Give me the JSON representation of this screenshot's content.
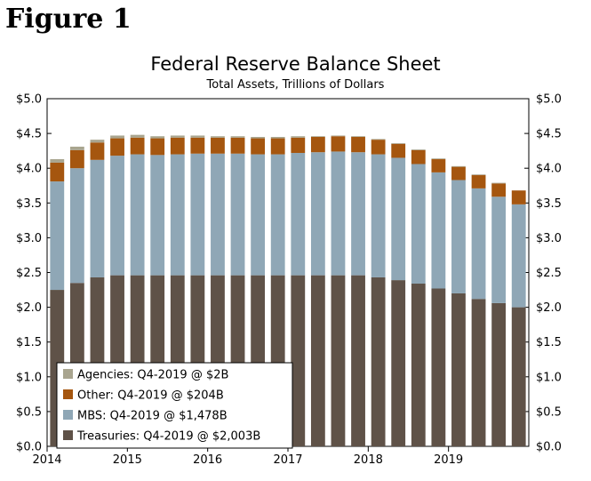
{
  "figure_label": "Figure 1",
  "colors": {
    "treasuries": "#5f5248",
    "mbs": "#8fa7b6",
    "other": "#a5560f",
    "agencies": "#a9a58f"
  },
  "chart_data": {
    "type": "bar",
    "stacked": true,
    "title": "Federal Reserve Balance Sheet",
    "subtitle": "Total Assets, Trillions of Dollars",
    "xlabel": "",
    "ylabel": "",
    "ylim": [
      0,
      5.0
    ],
    "y_ticks": [
      "$0.0",
      "$0.5",
      "$1.0",
      "$1.5",
      "$2.0",
      "$2.5",
      "$3.0",
      "$3.5",
      "$4.0",
      "$4.5",
      "$5.0"
    ],
    "x_ticks": [
      {
        "label": "2014",
        "index": -0.5
      },
      {
        "label": "2015",
        "index": 3.5
      },
      {
        "label": "2016",
        "index": 7.5
      },
      {
        "label": "2017",
        "index": 11.5
      },
      {
        "label": "2018",
        "index": 15.5
      },
      {
        "label": "2019",
        "index": 19.5
      }
    ],
    "categories": [
      "Q1-2014",
      "Q2-2014",
      "Q3-2014",
      "Q4-2014",
      "Q1-2015",
      "Q2-2015",
      "Q3-2015",
      "Q4-2015",
      "Q1-2016",
      "Q2-2016",
      "Q3-2016",
      "Q4-2016",
      "Q1-2017",
      "Q2-2017",
      "Q3-2017",
      "Q4-2017",
      "Q1-2018",
      "Q2-2018",
      "Q3-2018",
      "Q4-2018",
      "Q1-2019",
      "Q2-2019",
      "Q3-2019",
      "Q4-2019"
    ],
    "series": [
      {
        "name": "Treasuries",
        "key": "treasuries",
        "values": [
          2.25,
          2.35,
          2.43,
          2.46,
          2.46,
          2.46,
          2.46,
          2.46,
          2.46,
          2.46,
          2.46,
          2.46,
          2.46,
          2.46,
          2.46,
          2.46,
          2.43,
          2.39,
          2.34,
          2.27,
          2.2,
          2.12,
          2.06,
          2.0
        ]
      },
      {
        "name": "MBS",
        "key": "mbs",
        "values": [
          1.56,
          1.65,
          1.69,
          1.72,
          1.74,
          1.73,
          1.74,
          1.75,
          1.75,
          1.75,
          1.74,
          1.74,
          1.76,
          1.77,
          1.78,
          1.77,
          1.77,
          1.76,
          1.72,
          1.67,
          1.63,
          1.59,
          1.53,
          1.48
        ]
      },
      {
        "name": "Other",
        "key": "other",
        "values": [
          0.27,
          0.26,
          0.25,
          0.25,
          0.24,
          0.24,
          0.24,
          0.23,
          0.23,
          0.23,
          0.23,
          0.23,
          0.22,
          0.22,
          0.22,
          0.22,
          0.21,
          0.2,
          0.2,
          0.19,
          0.19,
          0.19,
          0.19,
          0.2
        ]
      },
      {
        "name": "Agencies",
        "key": "agencies",
        "values": [
          0.05,
          0.05,
          0.04,
          0.04,
          0.04,
          0.03,
          0.03,
          0.03,
          0.02,
          0.02,
          0.02,
          0.02,
          0.02,
          0.01,
          0.01,
          0.01,
          0.01,
          0.01,
          0.01,
          0.01,
          0.01,
          0.01,
          0.01,
          0.0
        ]
      }
    ],
    "legend": [
      {
        "label": "Agencies: Q4-2019 @ $2B",
        "key": "agencies"
      },
      {
        "label": "Other: Q4-2019 @ $204B",
        "key": "other"
      },
      {
        "label": "MBS: Q4-2019 @ $1,478B",
        "key": "mbs"
      },
      {
        "label": "Treasuries: Q4-2019 @ $2,003B",
        "key": "treasuries"
      }
    ],
    "legend_position": "bottom-left"
  }
}
